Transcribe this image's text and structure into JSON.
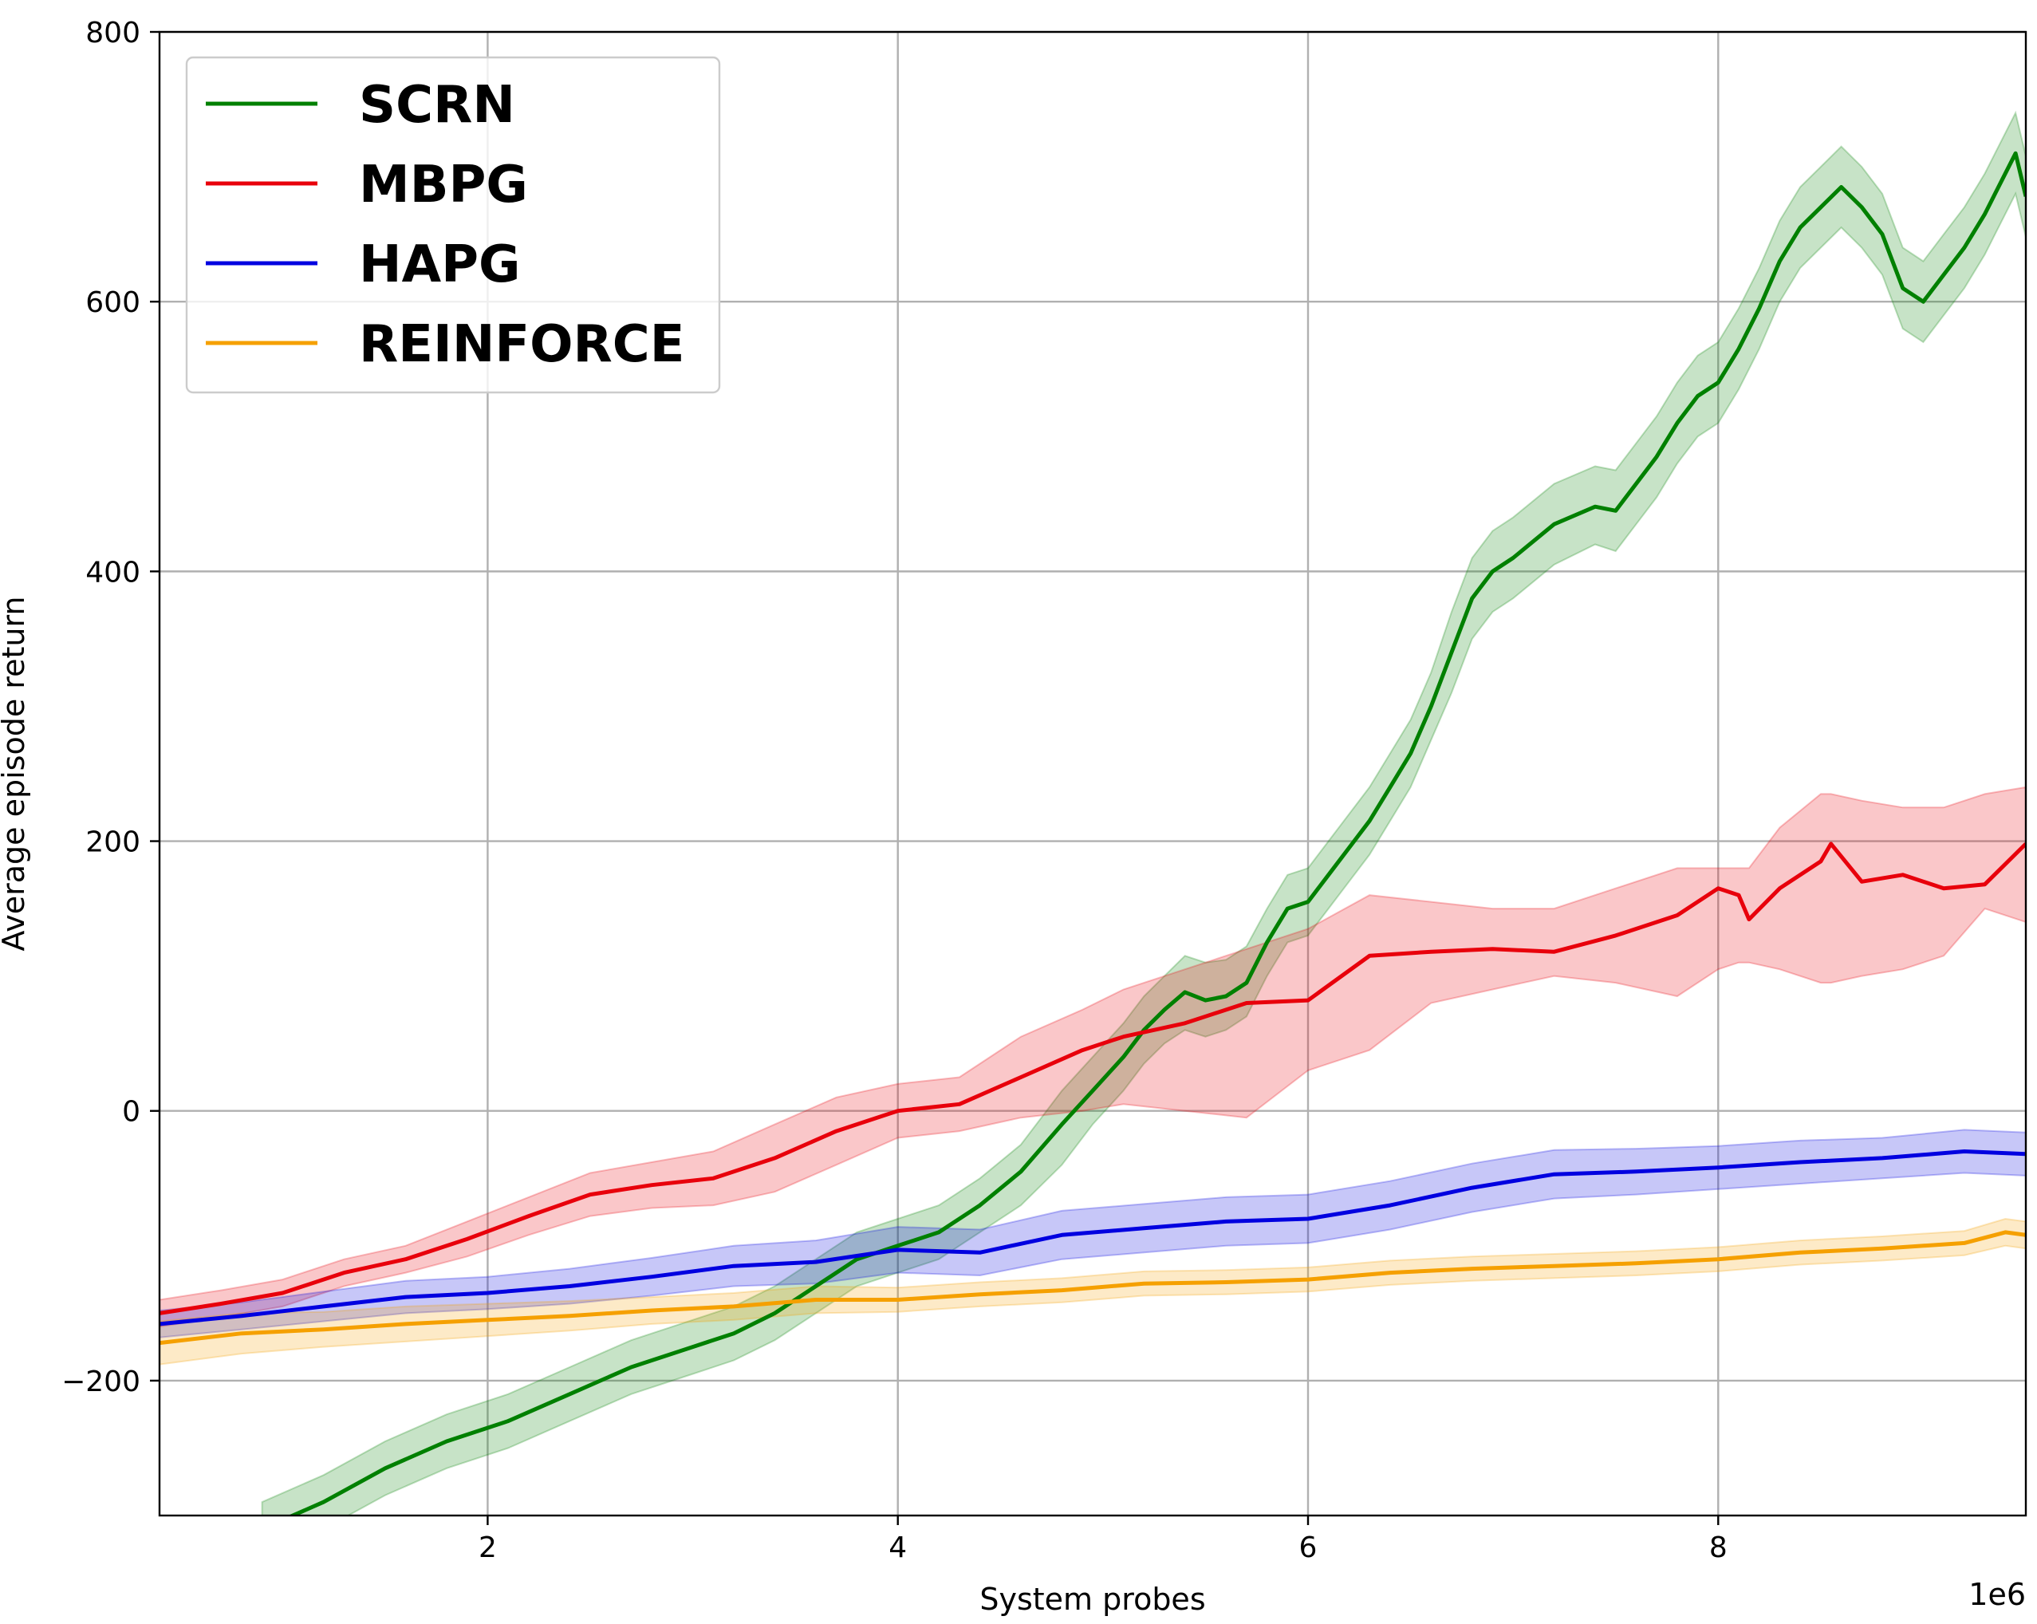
{
  "chart_data": {
    "type": "line",
    "title": "",
    "xlabel": "System probes",
    "ylabel": "Average episode return",
    "x_offset_label": "1e6",
    "xlim": [
      0.4,
      9.5
    ],
    "ylim": [
      -300,
      800
    ],
    "xticks": [
      2,
      4,
      6,
      8
    ],
    "xtick_labels": [
      "2",
      "4",
      "6",
      "8"
    ],
    "yticks": [
      -200,
      0,
      200,
      400,
      600,
      800
    ],
    "ytick_labels": [
      "−200",
      "0",
      "200",
      "400",
      "600",
      "800"
    ],
    "grid": true,
    "legend_position": "top-left",
    "series": [
      {
        "name": "SCRN",
        "color": "#008000",
        "x": [
          0.9,
          1.2,
          1.5,
          1.8,
          2.1,
          2.4,
          2.7,
          3.0,
          3.2,
          3.4,
          3.6,
          3.8,
          4.0,
          4.2,
          4.4,
          4.6,
          4.8,
          4.95,
          5.1,
          5.2,
          5.3,
          5.4,
          5.5,
          5.6,
          5.7,
          5.8,
          5.9,
          6.0,
          6.1,
          6.2,
          6.3,
          6.4,
          6.5,
          6.6,
          6.7,
          6.8,
          6.9,
          7.0,
          7.2,
          7.4,
          7.5,
          7.6,
          7.7,
          7.8,
          7.9,
          8.0,
          8.1,
          8.2,
          8.3,
          8.4,
          8.5,
          8.6,
          8.7,
          8.8,
          8.9,
          9.0,
          9.1,
          9.2,
          9.3,
          9.35,
          9.45,
          9.5
        ],
        "y": [
          -310,
          -290,
          -265,
          -245,
          -230,
          -210,
          -190,
          -175,
          -165,
          -150,
          -130,
          -110,
          -100,
          -90,
          -70,
          -45,
          -10,
          15,
          40,
          60,
          75,
          88,
          82,
          85,
          95,
          125,
          150,
          155,
          175,
          195,
          215,
          240,
          265,
          300,
          340,
          380,
          400,
          410,
          435,
          448,
          445,
          465,
          485,
          510,
          530,
          540,
          565,
          595,
          630,
          655,
          670,
          685,
          670,
          650,
          610,
          600,
          620,
          640,
          665,
          680,
          710,
          678
        ],
        "y_low": [
          -330,
          -310,
          -285,
          -265,
          -250,
          -230,
          -210,
          -195,
          -185,
          -170,
          -150,
          -130,
          -120,
          -110,
          -90,
          -70,
          -40,
          -10,
          15,
          35,
          50,
          60,
          55,
          60,
          70,
          100,
          125,
          130,
          150,
          170,
          190,
          215,
          240,
          275,
          310,
          350,
          370,
          380,
          405,
          420,
          415,
          435,
          455,
          480,
          500,
          510,
          535,
          565,
          600,
          625,
          640,
          655,
          640,
          620,
          580,
          570,
          590,
          610,
          635,
          650,
          680,
          648
        ],
        "y_high": [
          -290,
          -270,
          -245,
          -225,
          -210,
          -190,
          -170,
          -155,
          -145,
          -130,
          -110,
          -90,
          -80,
          -70,
          -50,
          -25,
          15,
          40,
          65,
          85,
          100,
          115,
          110,
          112,
          122,
          150,
          175,
          180,
          200,
          220,
          240,
          265,
          290,
          325,
          370,
          410,
          430,
          440,
          465,
          478,
          475,
          495,
          515,
          540,
          560,
          570,
          595,
          625,
          660,
          685,
          700,
          715,
          700,
          680,
          640,
          630,
          650,
          670,
          695,
          710,
          740,
          708
        ]
      },
      {
        "name": "MBPG",
        "color": "#e8000b",
        "x": [
          0.4,
          0.7,
          1.0,
          1.3,
          1.6,
          1.9,
          2.2,
          2.5,
          2.8,
          3.1,
          3.4,
          3.7,
          4.0,
          4.3,
          4.6,
          4.9,
          5.1,
          5.4,
          5.7,
          6.0,
          6.3,
          6.6,
          6.9,
          7.2,
          7.5,
          7.8,
          8.0,
          8.1,
          8.15,
          8.3,
          8.5,
          8.55,
          8.7,
          8.9,
          9.1,
          9.3,
          9.5
        ],
        "y": [
          -150,
          -143,
          -135,
          -120,
          -110,
          -95,
          -78,
          -62,
          -55,
          -50,
          -35,
          -15,
          0,
          5,
          25,
          45,
          55,
          65,
          80,
          82,
          115,
          118,
          120,
          118,
          130,
          145,
          165,
          160,
          142,
          165,
          185,
          198,
          170,
          175,
          165,
          168,
          198
        ],
        "y_low": [
          -160,
          -153,
          -145,
          -130,
          -120,
          -108,
          -92,
          -78,
          -72,
          -70,
          -60,
          -40,
          -20,
          -15,
          -5,
          0,
          5,
          0,
          -5,
          30,
          45,
          80,
          90,
          100,
          95,
          85,
          105,
          110,
          110,
          105,
          95,
          95,
          100,
          105,
          115,
          150,
          140
        ],
        "y_high": [
          -140,
          -133,
          -125,
          -110,
          -100,
          -82,
          -64,
          -46,
          -38,
          -30,
          -10,
          10,
          20,
          25,
          55,
          75,
          90,
          105,
          120,
          135,
          160,
          155,
          150,
          150,
          165,
          180,
          180,
          180,
          180,
          210,
          235,
          235,
          230,
          225,
          225,
          235,
          240
        ]
      },
      {
        "name": "HAPG",
        "color": "#0000e0",
        "x": [
          0.4,
          0.8,
          1.2,
          1.6,
          2.0,
          2.4,
          2.8,
          3.2,
          3.6,
          4.0,
          4.4,
          4.8,
          5.2,
          5.6,
          6.0,
          6.4,
          6.8,
          7.2,
          7.6,
          8.0,
          8.4,
          8.8,
          9.2,
          9.5
        ],
        "y": [
          -158,
          -152,
          -145,
          -138,
          -135,
          -130,
          -123,
          -115,
          -112,
          -103,
          -105,
          -92,
          -87,
          -82,
          -80,
          -70,
          -57,
          -47,
          -45,
          -42,
          -38,
          -35,
          -30,
          -32
        ],
        "y_low": [
          -168,
          -162,
          -156,
          -150,
          -147,
          -143,
          -137,
          -130,
          -128,
          -120,
          -122,
          -110,
          -105,
          -100,
          -98,
          -88,
          -75,
          -65,
          -62,
          -58,
          -54,
          -50,
          -46,
          -48
        ],
        "y_high": [
          -148,
          -142,
          -134,
          -126,
          -123,
          -117,
          -109,
          -100,
          -96,
          -86,
          -88,
          -74,
          -69,
          -64,
          -62,
          -52,
          -39,
          -29,
          -28,
          -26,
          -22,
          -20,
          -14,
          -16
        ]
      },
      {
        "name": "REINFORCE",
        "color": "#f5a000",
        "x": [
          0.4,
          0.8,
          1.2,
          1.6,
          2.0,
          2.4,
          2.8,
          3.2,
          3.6,
          4.0,
          4.4,
          4.8,
          5.2,
          5.6,
          6.0,
          6.4,
          6.8,
          7.2,
          7.6,
          8.0,
          8.4,
          8.8,
          9.2,
          9.4,
          9.5
        ],
        "y": [
          -172,
          -165,
          -162,
          -158,
          -155,
          -152,
          -148,
          -145,
          -140,
          -140,
          -136,
          -133,
          -128,
          -127,
          -125,
          -120,
          -117,
          -115,
          -113,
          -110,
          -105,
          -102,
          -98,
          -90,
          -92
        ],
        "y_low": [
          -188,
          -180,
          -175,
          -171,
          -167,
          -163,
          -158,
          -155,
          -150,
          -149,
          -145,
          -142,
          -137,
          -136,
          -134,
          -129,
          -126,
          -124,
          -122,
          -119,
          -114,
          -111,
          -107,
          -100,
          -102
        ],
        "y_high": [
          -156,
          -150,
          -149,
          -145,
          -143,
          -141,
          -138,
          -135,
          -130,
          -131,
          -127,
          -124,
          -119,
          -118,
          -116,
          -111,
          -108,
          -106,
          -104,
          -101,
          -96,
          -93,
          -89,
          -80,
          -82
        ]
      }
    ]
  }
}
